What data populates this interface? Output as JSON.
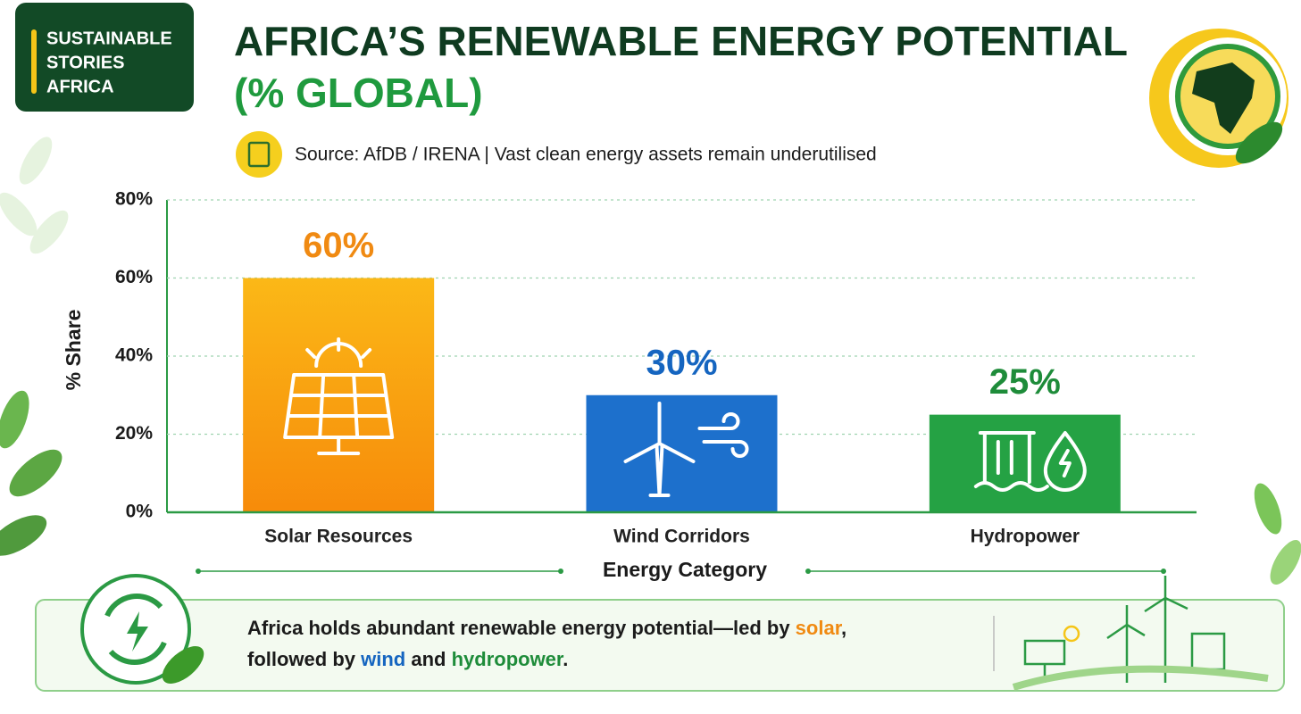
{
  "brand": [
    "SUSTAINABLE",
    "STORIES",
    "AFRICA"
  ],
  "chart_data": {
    "type": "bar",
    "title": "AFRICA’S RENEWABLE ENERGY POTENTIAL",
    "subtitle": "(% GLOBAL)",
    "source": "Source: AfDB / IRENA | Vast clean energy assets remain underutilised",
    "y_label": "% Share",
    "x_label": "Energy Category",
    "categories": [
      "Solar Resources",
      "Wind Corridors",
      "Hydropower"
    ],
    "values": [
      60,
      30,
      25
    ],
    "value_labels": [
      "60%",
      "30%",
      "25%"
    ],
    "colors": [
      "#f9a60c",
      "#1d70cc",
      "#25a244"
    ],
    "label_colors": [
      "#f08a12",
      "#1565c0",
      "#1e8c3a"
    ],
    "ylim": [
      0,
      80
    ],
    "yticks": [
      {
        "value": 0,
        "label": "0%"
      },
      {
        "value": 20,
        "label": "20%"
      },
      {
        "value": 40,
        "label": "40%"
      },
      {
        "value": 60,
        "label": "60%"
      },
      {
        "value": 80,
        "label": "80%"
      }
    ],
    "grid": true
  },
  "footer": {
    "parts": [
      {
        "text": "Africa holds abundant renewable energy potential—led by ",
        "color": "#1b1b1b"
      },
      {
        "text": "solar",
        "color": "#f08a12"
      },
      {
        "text": ",",
        "color": "#1b1b1b"
      },
      {
        "text": "followed by ",
        "color": "#1b1b1b"
      },
      {
        "text": "wind",
        "color": "#1565c0"
      },
      {
        "text": " and ",
        "color": "#1b1b1b"
      },
      {
        "text": "hydropower",
        "color": "#1e8c3a"
      },
      {
        "text": ".",
        "color": "#1b1b1b"
      }
    ]
  }
}
